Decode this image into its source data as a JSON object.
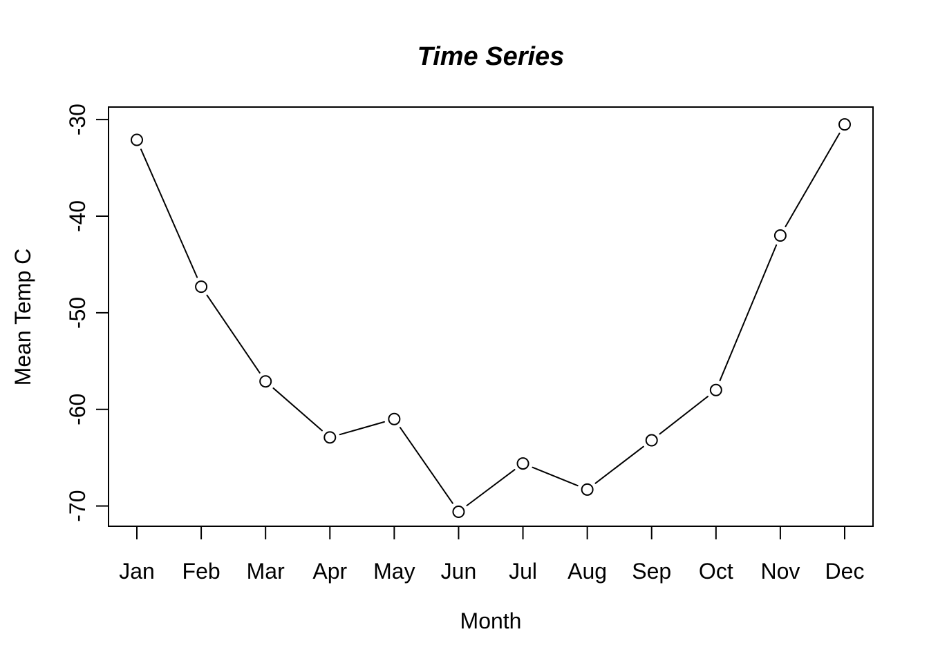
{
  "page": {
    "background_color": "#ffffff",
    "foreground_color": "#000000"
  },
  "chart_data": {
    "type": "line",
    "title": "Time Series",
    "xlabel": "Month",
    "ylabel": "Mean Temp C",
    "categories": [
      "Jan",
      "Feb",
      "Mar",
      "Apr",
      "May",
      "Jun",
      "Jul",
      "Aug",
      "Sep",
      "Oct",
      "Nov",
      "Dec"
    ],
    "values": [
      -32.1,
      -47.3,
      -57.1,
      -62.9,
      -61.0,
      -70.6,
      -65.6,
      -68.3,
      -63.2,
      -58.0,
      -42.0,
      -30.5
    ],
    "series_name": "Mean Temp C",
    "y_ticks": [
      -30,
      -40,
      -50,
      -60,
      -70
    ],
    "y_tick_labels": [
      "-30",
      "-40",
      "-50",
      "-60",
      "-70"
    ],
    "ylim": [
      -72.1,
      -28.7
    ],
    "grid": false,
    "legend_position": "none",
    "marker": "open-circle",
    "line_style": "segments-with-gaps",
    "line_color": "#000000",
    "marker_color": "#000000",
    "text_color": "#000000"
  }
}
